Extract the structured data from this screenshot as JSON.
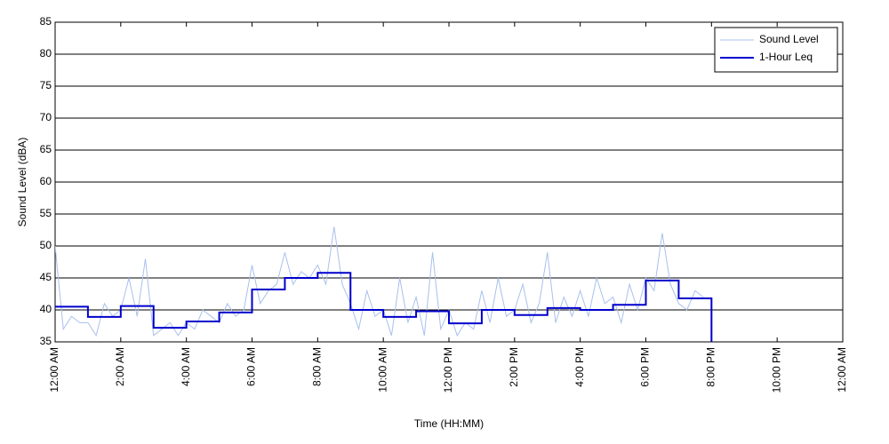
{
  "chart_data": {
    "type": "line",
    "xlabel": "Time (HH:MM)",
    "ylabel": "Sound Level (dBA)",
    "xlim": [
      0,
      24
    ],
    "ylim": [
      35,
      85
    ],
    "xticks": [
      {
        "value": 0,
        "label": "12:00 AM"
      },
      {
        "value": 2,
        "label": "2:00 AM"
      },
      {
        "value": 4,
        "label": "4:00 AM"
      },
      {
        "value": 6,
        "label": "6:00 AM"
      },
      {
        "value": 8,
        "label": "8:00 AM"
      },
      {
        "value": 10,
        "label": "10:00 AM"
      },
      {
        "value": 12,
        "label": "12:00 PM"
      },
      {
        "value": 14,
        "label": "2:00 PM"
      },
      {
        "value": 16,
        "label": "4:00 PM"
      },
      {
        "value": 18,
        "label": "6:00 PM"
      },
      {
        "value": 20,
        "label": "8:00 PM"
      },
      {
        "value": 22,
        "label": "10:00 PM"
      },
      {
        "value": 24,
        "label": "12:00 AM"
      }
    ],
    "yticks": [
      35,
      40,
      45,
      50,
      55,
      60,
      65,
      70,
      75,
      80,
      85
    ],
    "grid": true,
    "legend": "upper right",
    "series": [
      {
        "name": "Sound Level",
        "color": "#a8c0ee",
        "style": "line",
        "x": [
          0,
          0.25,
          0.5,
          0.75,
          1,
          1.25,
          1.5,
          1.75,
          2,
          2.25,
          2.5,
          2.75,
          3,
          3.25,
          3.5,
          3.75,
          4,
          4.25,
          4.5,
          4.75,
          5,
          5.25,
          5.5,
          5.75,
          6,
          6.25,
          6.5,
          6.75,
          7,
          7.25,
          7.5,
          7.75,
          8,
          8.25,
          8.5,
          8.75,
          9,
          9.25,
          9.5,
          9.75,
          10,
          10.25,
          10.5,
          10.75,
          11,
          11.25,
          11.5,
          11.75,
          12,
          12.25,
          12.5,
          12.75,
          13,
          13.25,
          13.5,
          13.75,
          14,
          14.25,
          14.5,
          14.75,
          15,
          15.25,
          15.5,
          15.75,
          16,
          16.25,
          16.5,
          16.75,
          17,
          17.25,
          17.5,
          17.75,
          18,
          18.25,
          18.5,
          18.75,
          19,
          19.25,
          19.5,
          19.75
        ],
        "values": [
          50,
          37,
          39,
          38,
          38,
          36,
          41,
          39,
          40,
          45,
          39,
          48,
          36,
          37,
          38,
          36,
          38,
          37,
          40,
          39,
          38,
          41,
          39,
          40,
          47,
          41,
          43,
          44,
          49,
          44,
          46,
          45,
          47,
          44,
          53,
          44,
          41,
          37,
          43,
          39,
          40,
          36,
          45,
          38,
          42,
          36,
          49,
          37,
          40,
          36,
          38,
          37,
          43,
          38,
          45,
          39,
          40,
          44,
          38,
          41,
          49,
          38,
          42,
          39,
          43,
          39,
          45,
          41,
          42,
          38,
          44,
          40,
          45,
          43,
          52,
          44,
          41,
          40,
          43,
          42
        ]
      },
      {
        "name": "1-Hour Leq",
        "color": "#0000cc",
        "style": "stairs",
        "x": [
          0,
          1,
          2,
          3,
          4,
          5,
          6,
          7,
          8,
          9,
          10,
          11,
          12,
          13,
          14,
          15,
          16,
          17,
          18,
          19
        ],
        "values": [
          40.5,
          38.9,
          40.6,
          37.2,
          38.2,
          39.6,
          43.2,
          45.0,
          45.8,
          40.0,
          38.9,
          39.8,
          37.9,
          40.0,
          39.2,
          40.3,
          40.0,
          40.8,
          44.6,
          41.8
        ]
      }
    ]
  }
}
